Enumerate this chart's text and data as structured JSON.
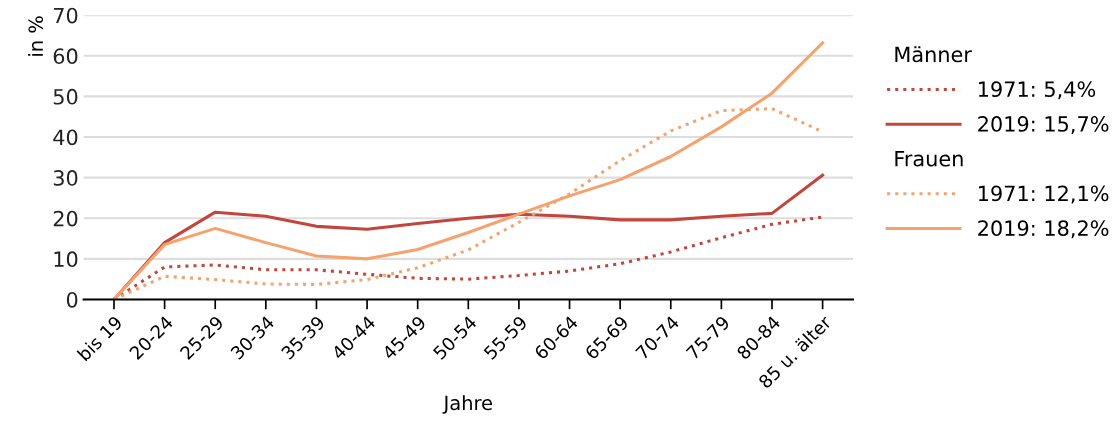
{
  "chart_data": {
    "type": "line",
    "xlabel": "Jahre",
    "ylabel": "in %",
    "categories": [
      "bis 19",
      "20-24",
      "25-29",
      "30-34",
      "35-39",
      "40-44",
      "45-49",
      "50-54",
      "55-59",
      "60-64",
      "65-69",
      "70-74",
      "75-79",
      "80-84",
      "85 u. älter"
    ],
    "series": [
      {
        "name": "1971: 5,4%",
        "color": "#c1463e",
        "line_style": "dotted",
        "values": [
          0,
          8,
          8.5,
          7.3,
          7.3,
          6.2,
          5.2,
          5.0,
          5.9,
          7.0,
          8.8,
          11.7,
          15.2,
          18.5,
          20.3
        ]
      },
      {
        "name": "2019: 15,7%",
        "color": "#c1463e",
        "line_style": "solid",
        "values": [
          0,
          14,
          21.5,
          20.5,
          18,
          17.3,
          18.7,
          20,
          21,
          20.5,
          19.6,
          19.6,
          20.5,
          21.2,
          30.6
        ]
      },
      {
        "name": "1971: 12,1%",
        "color": "#f4a36f",
        "line_style": "dotted",
        "values": [
          0,
          5.7,
          4.9,
          3.8,
          3.7,
          4.9,
          7.8,
          12.2,
          19,
          26,
          34.2,
          41.5,
          46.5,
          47,
          41.3
        ]
      },
      {
        "name": "2019: 18,2%",
        "color": "#f4a36f",
        "line_style": "solid",
        "values": [
          0,
          13.5,
          17.5,
          14,
          10.7,
          10,
          12.3,
          16.5,
          21,
          25.5,
          29.5,
          35.2,
          42.5,
          50.8,
          63.2
        ]
      }
    ],
    "annotations": [
      "Männer",
      "Frauen"
    ],
    "ylim": [
      0,
      70
    ],
    "yticks": [
      0,
      10,
      20,
      30,
      40,
      50,
      60,
      70
    ],
    "grid": "y",
    "legend": "right",
    "marker": "none"
  }
}
